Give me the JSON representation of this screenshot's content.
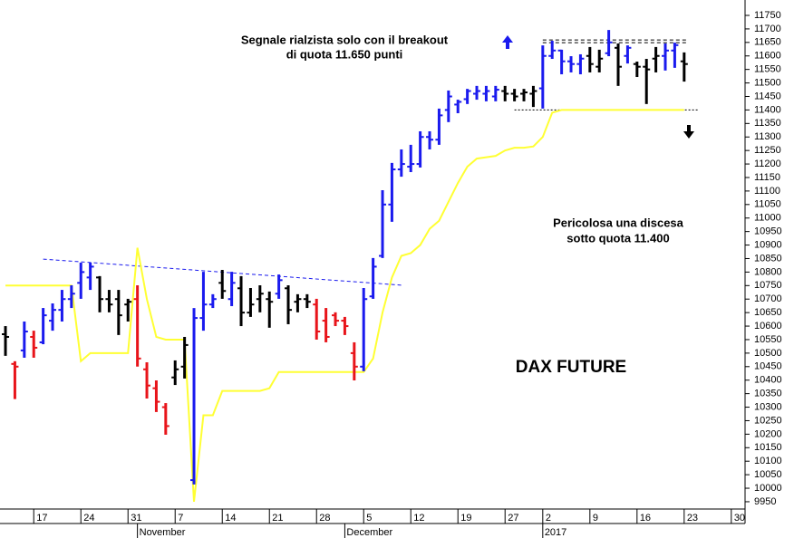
{
  "chart_data": {
    "type": "ohlc",
    "title": "DAX FUTURE",
    "annotations": [
      {
        "lines": [
          "Segnale rialzista solo con il breakout",
          "di quota 11.650 punti"
        ]
      },
      {
        "lines": [
          "Pericolosa una discesa",
          "sotto quota 11.400"
        ]
      }
    ],
    "bars": {
      "open": [
        10570,
        10460,
        10510,
        10560,
        10540,
        10620,
        10660,
        10700,
        10760,
        10780,
        10780,
        10700,
        10700,
        10680,
        10700,
        10440,
        10370,
        10300,
        10410,
        10450,
        10030,
        10630,
        10680,
        10760,
        10700,
        10740,
        10650,
        10700,
        10700,
        10720,
        10740,
        10690,
        10700,
        10680,
        10620,
        10640,
        10620,
        10500,
        10450,
        10710,
        10860,
        11050,
        11180,
        11190,
        11200,
        11300,
        11290,
        11400,
        11420,
        11440,
        11460,
        11460,
        11450,
        11470,
        11460,
        11460,
        11460,
        11480,
        11600,
        11620,
        11580,
        11570,
        11600,
        11560,
        11610,
        11630,
        11600,
        11570,
        11560,
        11590,
        11600,
        11620,
        11580
      ],
      "high": [
        10600,
        10470,
        10617,
        10583,
        10667,
        10684,
        10734,
        10751,
        10835,
        10835,
        10785,
        10734,
        10734,
        10701,
        10751,
        10466,
        10399,
        10315,
        10473,
        10560,
        10667,
        10801,
        10718,
        10808,
        10801,
        10785,
        10741,
        10751,
        10728,
        10791,
        10751,
        10718,
        10718,
        10701,
        10667,
        10651,
        10634,
        10540,
        10741,
        10852,
        11103,
        11204,
        11254,
        11271,
        11321,
        11321,
        11405,
        11472,
        11438,
        11478,
        11489,
        11489,
        11489,
        11489,
        11478,
        11478,
        11489,
        11639,
        11656,
        11623,
        11599,
        11606,
        11633,
        11623,
        11696,
        11646,
        11639,
        11579,
        11589,
        11633,
        11646,
        11649,
        11613
      ],
      "low": [
        10490,
        10330,
        10483,
        10483,
        10533,
        10583,
        10617,
        10667,
        10701,
        10734,
        10651,
        10651,
        10567,
        10617,
        10450,
        10332,
        10282,
        10198,
        10382,
        10406,
        10014,
        10583,
        10667,
        10701,
        10674,
        10600,
        10634,
        10651,
        10594,
        10701,
        10607,
        10651,
        10667,
        10550,
        10540,
        10600,
        10567,
        10399,
        10433,
        10701,
        10852,
        10986,
        11153,
        11170,
        11187,
        11254,
        11271,
        11355,
        11388,
        11422,
        11438,
        11432,
        11432,
        11432,
        11432,
        11432,
        11411,
        11405,
        11589,
        11532,
        11539,
        11532,
        11539,
        11539,
        11599,
        11489,
        11572,
        11522,
        11422,
        11539,
        11546,
        11556,
        11505
      ],
      "close": [
        10560,
        10450,
        10580,
        10520,
        10640,
        10660,
        10700,
        10720,
        10800,
        10820,
        10700,
        10680,
        10640,
        10690,
        10480,
        10380,
        10320,
        10230,
        10440,
        10530,
        10630,
        10680,
        10700,
        10730,
        10760,
        10650,
        10680,
        10720,
        10690,
        10770,
        10660,
        10700,
        10690,
        10580,
        10560,
        10620,
        10600,
        10450,
        10700,
        10820,
        11050,
        11180,
        11200,
        11200,
        11300,
        11290,
        11380,
        11450,
        11430,
        11470,
        11470,
        11470,
        11475,
        11460,
        11450,
        11465,
        11470,
        11600,
        11620,
        11580,
        11570,
        11590,
        11570,
        11590,
        11650,
        11560,
        11630,
        11560,
        11550,
        11600,
        11620,
        11640,
        11570
      ],
      "colors": [
        "#000000",
        "#e8141a",
        "#1a1aee",
        "#e8141a",
        "#1a1aee",
        "#1a1aee",
        "#1a1aee",
        "#1a1aee",
        "#1a1aee",
        "#1a1aee",
        "#000000",
        "#000000",
        "#000000",
        "#000000",
        "#e8141a",
        "#e8141a",
        "#e8141a",
        "#e8141a",
        "#000000",
        "#000000",
        "#1a1aee",
        "#1a1aee",
        "#1a1aee",
        "#000000",
        "#1a1aee",
        "#000000",
        "#000000",
        "#000000",
        "#000000",
        "#1a1aee",
        "#000000",
        "#000000",
        "#000000",
        "#e8141a",
        "#e8141a",
        "#e8141a",
        "#e8141a",
        "#e8141a",
        "#1a1aee",
        "#1a1aee",
        "#1a1aee",
        "#1a1aee",
        "#1a1aee",
        "#1a1aee",
        "#1a1aee",
        "#1a1aee",
        "#1a1aee",
        "#1a1aee",
        "#1a1aee",
        "#1a1aee",
        "#1a1aee",
        "#1a1aee",
        "#1a1aee",
        "#000000",
        "#000000",
        "#000000",
        "#000000",
        "#1a1aee",
        "#1a1aee",
        "#1a1aee",
        "#1a1aee",
        "#1a1aee",
        "#000000",
        "#000000",
        "#1a1aee",
        "#000000",
        "#1a1aee",
        "#000000",
        "#000000",
        "#000000",
        "#1a1aee",
        "#1a1aee",
        "#000000"
      ]
    },
    "stop_line": {
      "color": "#ffff33",
      "values": [
        10750,
        10750,
        10750,
        10750,
        10750,
        10750,
        10750,
        10750,
        10470,
        10500,
        10500,
        10500,
        10500,
        10500,
        10890,
        10700,
        10560,
        10550,
        10550,
        10550,
        9950,
        10270,
        10270,
        10360,
        10360,
        10360,
        10360,
        10360,
        10370,
        10430,
        10430,
        10430,
        10430,
        10430,
        10430,
        10430,
        10430,
        10430,
        10430,
        10480,
        10650,
        10780,
        10860,
        10870,
        10900,
        10960,
        10990,
        11060,
        11130,
        11190,
        11220,
        11225,
        11230,
        11250,
        11260,
        11260,
        11265,
        11300,
        11390,
        11400,
        11400,
        11400,
        11400,
        11400,
        11400,
        11400,
        11400,
        11400,
        11400,
        11400,
        11400,
        11400,
        11400
      ]
    },
    "reference_lines": [
      {
        "x": [
          4,
          42.2
        ],
        "values": [
          10848,
          10751
        ],
        "color": "#1a1aee",
        "style": "dashed"
      },
      {
        "x": [
          57,
          72.4
        ],
        "values": [
          11659,
          11659
        ],
        "color": "#000000",
        "style": "dashed"
      },
      {
        "x": [
          57,
          72.4
        ],
        "values": [
          11649,
          11649
        ],
        "color": "#000000",
        "style": "dashed"
      },
      {
        "x": [
          54,
          73.5
        ],
        "values": [
          11400,
          11400
        ],
        "color": "#000000",
        "style": "dotted"
      }
    ],
    "xlim": [
      -0.58,
      78.46
    ],
    "xticks": [
      {
        "value": 3,
        "label": "17"
      },
      {
        "value": 8,
        "label": "24"
      },
      {
        "value": 13,
        "label": "31"
      },
      {
        "value": 18,
        "label": "7"
      },
      {
        "value": 23,
        "label": "14"
      },
      {
        "value": 28,
        "label": "21"
      },
      {
        "value": 33,
        "label": "28"
      },
      {
        "value": 38,
        "label": "5"
      },
      {
        "value": 43,
        "label": "12"
      },
      {
        "value": 48,
        "label": "19"
      },
      {
        "value": 53,
        "label": "27"
      },
      {
        "value": 57,
        "label": "2"
      },
      {
        "value": 62,
        "label": "9"
      },
      {
        "value": 67,
        "label": "16"
      },
      {
        "value": 72,
        "label": "23"
      },
      {
        "value": 77,
        "label": "30"
      }
    ],
    "month_ticks": [
      {
        "value": 14,
        "label": "November"
      },
      {
        "value": 36,
        "label": "December"
      },
      {
        "value": 57,
        "label": "2017"
      }
    ],
    "ylim": [
      9923,
      11807
    ],
    "yticks": [
      9950,
      10000,
      10050,
      10100,
      10150,
      10200,
      10250,
      10300,
      10350,
      10400,
      10450,
      10500,
      10550,
      10600,
      10650,
      10700,
      10750,
      10800,
      10850,
      10900,
      10950,
      11000,
      11050,
      11100,
      11150,
      11200,
      11250,
      11300,
      11350,
      11400,
      11450,
      11500,
      11550,
      11600,
      11650,
      11700,
      11750
    ]
  }
}
